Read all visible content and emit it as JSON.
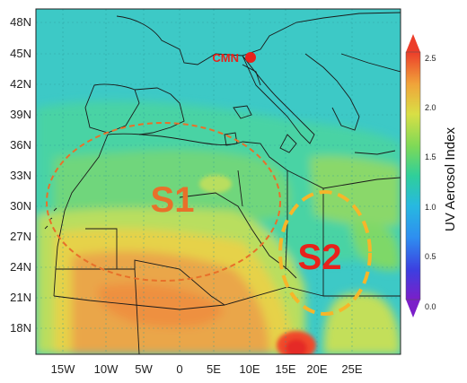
{
  "map": {
    "lat_ticks": [
      "48N",
      "45N",
      "42N",
      "39N",
      "36N",
      "33N",
      "30N",
      "27N",
      "24N",
      "21N",
      "18N"
    ],
    "lon_ticks": [
      "15W",
      "10W",
      "5W",
      "0",
      "5E",
      "10E",
      "15E",
      "20E",
      "25E"
    ],
    "regions": [
      {
        "label": "S1",
        "color": "#e8702a"
      },
      {
        "label": "S2",
        "color": "#f6b62a"
      }
    ],
    "station": {
      "label": "CMN",
      "color": "#e8221b"
    }
  },
  "colorbar": {
    "label": "UV Aerosol Index",
    "ticks": [
      "2.5",
      "2.0",
      "1.5",
      "1.0",
      "0.5",
      "0.0"
    ],
    "range": [
      0.0,
      2.5
    ]
  },
  "colors": {
    "background_sea": "#3cc8c8",
    "dust_high": "#f0622a",
    "dust_mid": "#e9b13c",
    "dust_low": "#8ed85a"
  }
}
